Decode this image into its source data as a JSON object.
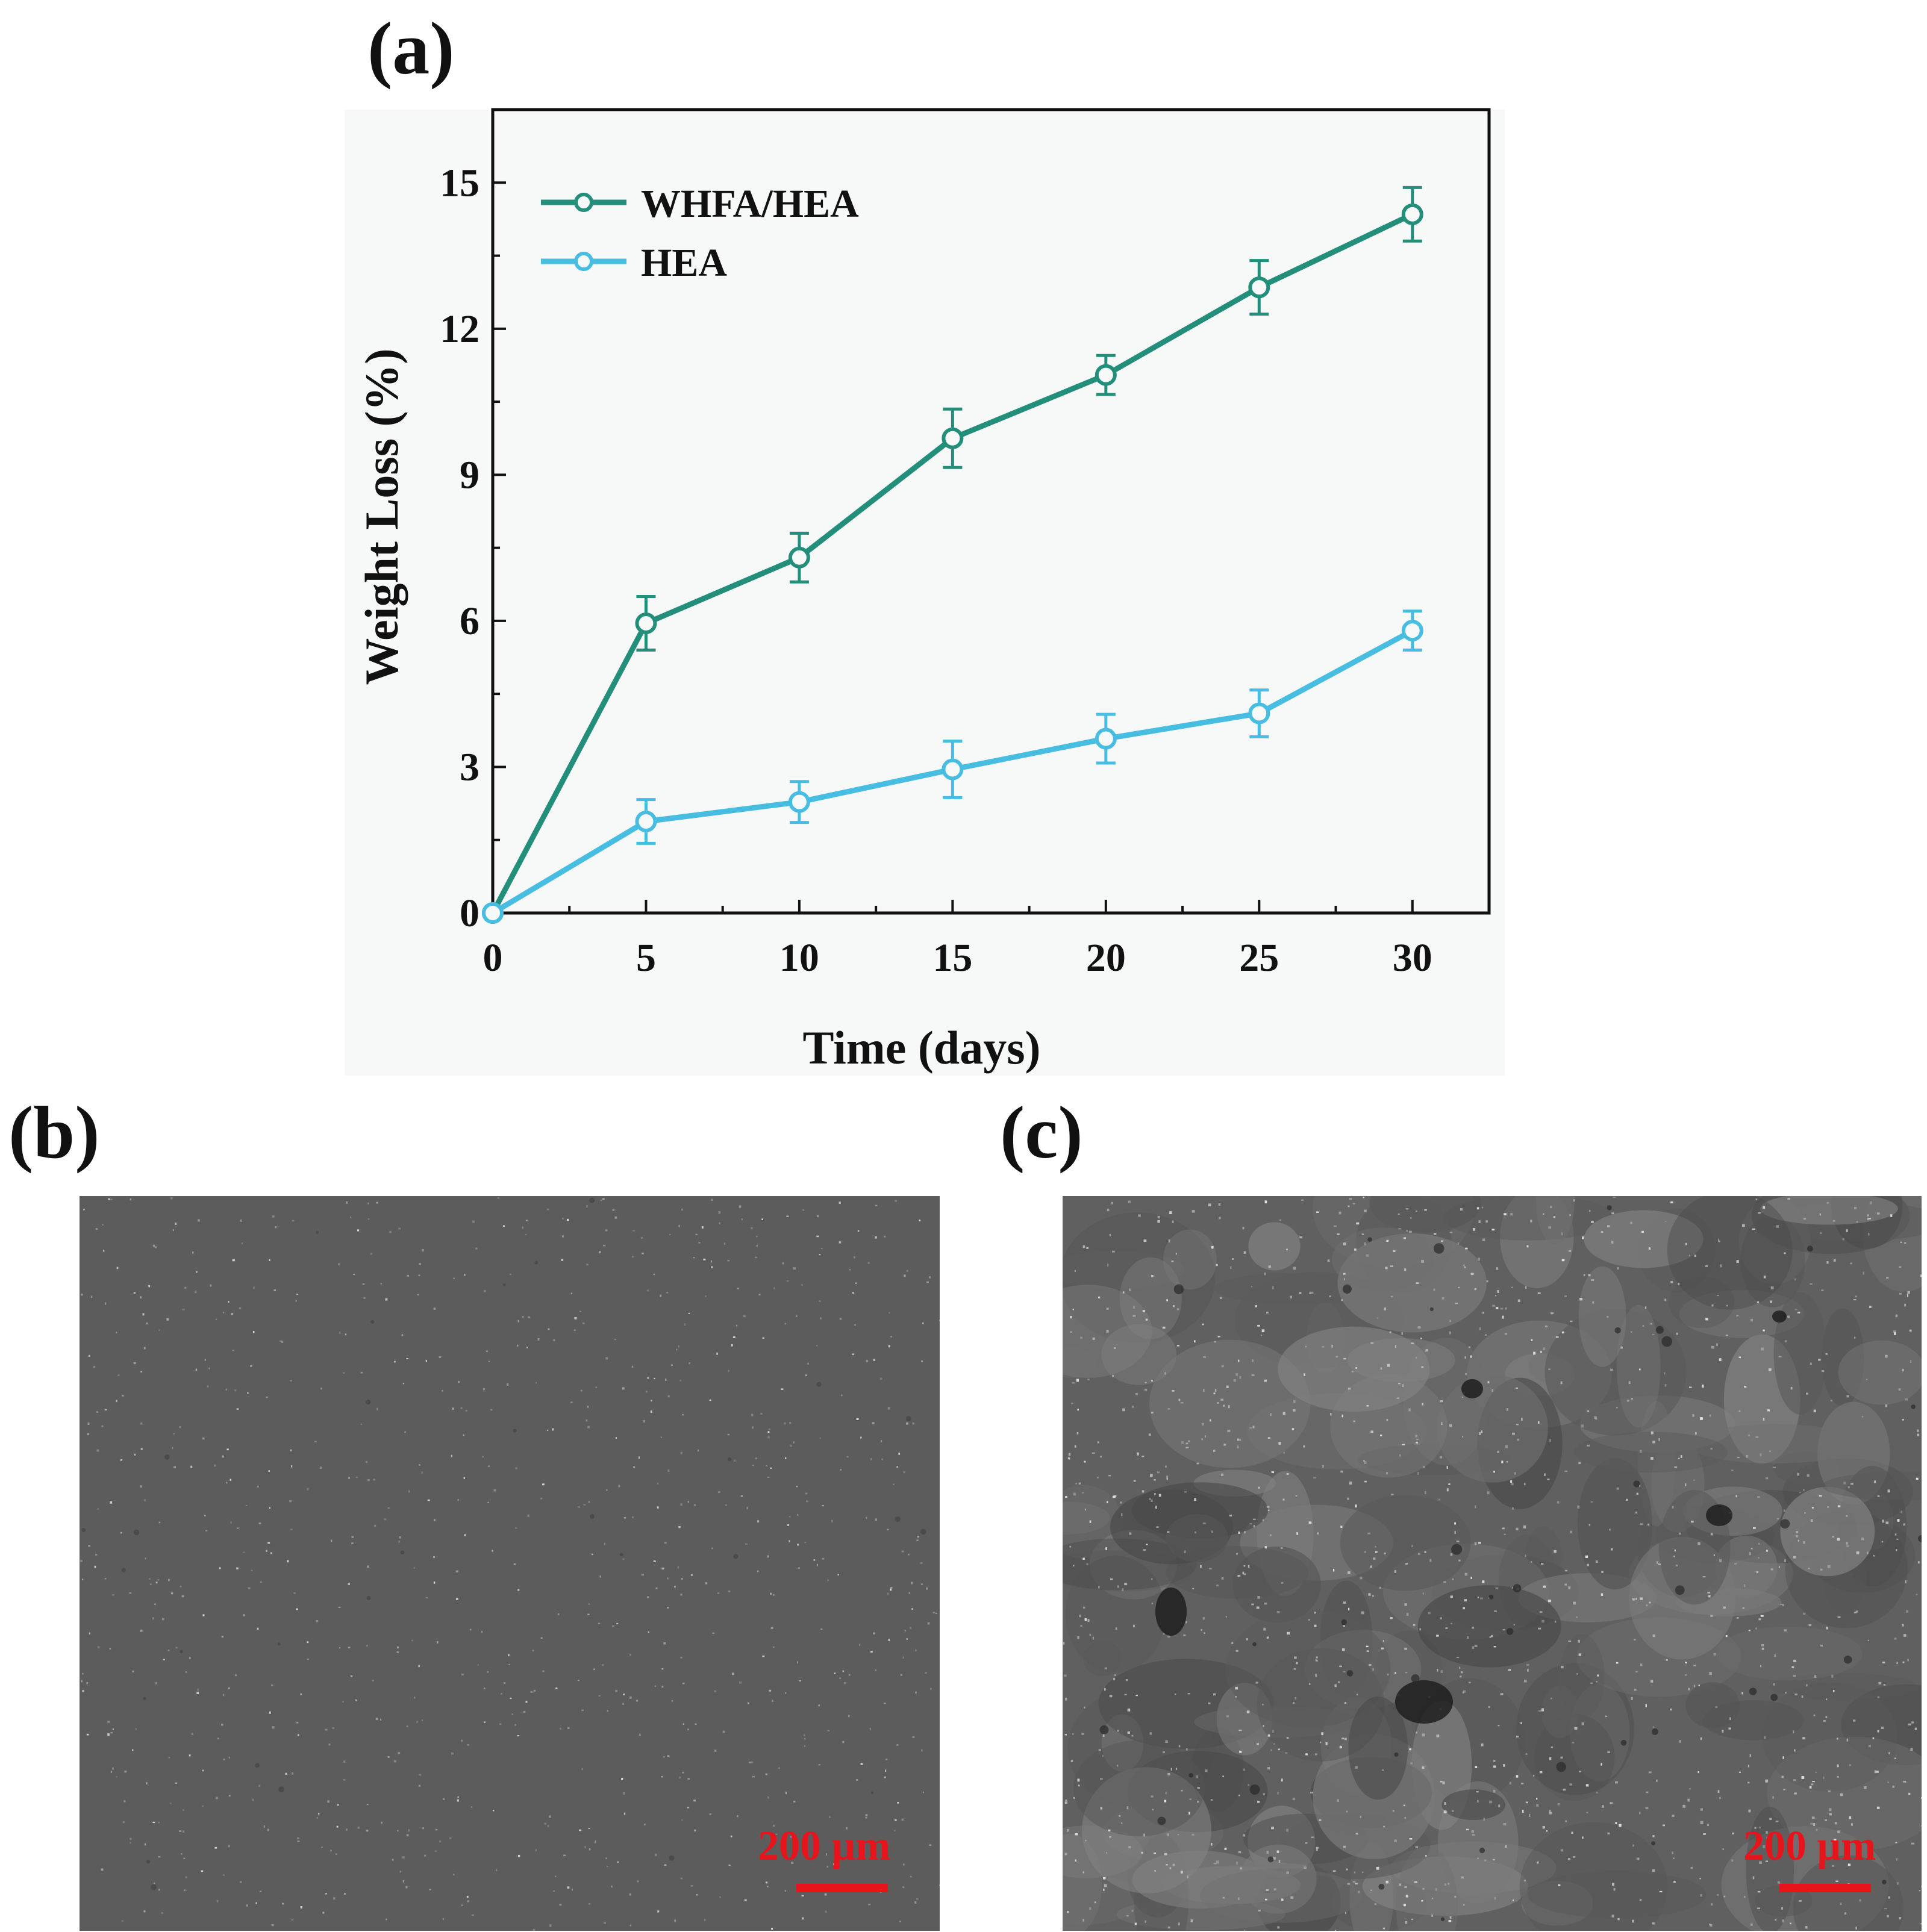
{
  "panels": {
    "a": "(a)",
    "b": "(b)",
    "c": "(c)"
  },
  "chart_data": {
    "type": "line",
    "xlabel": "Time (days)",
    "ylabel": "Weight Loss (%)",
    "xlim": [
      0,
      32.5
    ],
    "ylim": [
      0,
      16.5
    ],
    "xticks": [
      0,
      5,
      10,
      15,
      20,
      25,
      30
    ],
    "yticks": [
      0,
      3,
      6,
      9,
      12,
      15
    ],
    "grid": false,
    "legend_position": "top-left",
    "x": [
      0,
      5,
      10,
      15,
      20,
      25,
      30
    ],
    "series": [
      {
        "name": "WHFA/HEA",
        "color": "#238f7b",
        "values": [
          0,
          5.95,
          7.3,
          9.75,
          11.05,
          12.85,
          14.35
        ],
        "errors": [
          0,
          0.55,
          0.5,
          0.6,
          0.4,
          0.55,
          0.55
        ]
      },
      {
        "name": "HEA",
        "color": "#48bde2",
        "values": [
          0,
          1.88,
          2.28,
          2.95,
          3.58,
          4.1,
          5.8
        ],
        "errors": [
          0,
          0.45,
          0.42,
          0.58,
          0.5,
          0.48,
          0.4
        ]
      }
    ]
  },
  "micrographs": {
    "b": {
      "scale_label": "200 μm",
      "base_color": "#5c5c5c"
    },
    "c": {
      "scale_label": "200 μm",
      "base_color": "#606060"
    }
  }
}
